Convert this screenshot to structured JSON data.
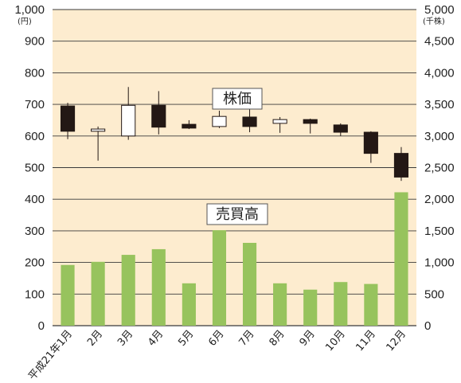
{
  "chart_data": {
    "type": "candlestick+bar",
    "colors": {
      "plot_background": "#fdeccf",
      "bar": "#97c35d",
      "candle_down": "#231815",
      "candle_up": "#ffffff",
      "gridline": "#3a3a3a"
    },
    "grid": true,
    "categories": [
      "平成21年1月",
      "2月",
      "3月",
      "4月",
      "5月",
      "6月",
      "7月",
      "8月",
      "9月",
      "10月",
      "11月",
      "12月"
    ],
    "left_axis": {
      "unit": "(円)",
      "ylim": [
        0,
        1000
      ],
      "ticks": [
        "0",
        "100",
        "200",
        "300",
        "400",
        "500",
        "600",
        "700",
        "800",
        "900",
        "1,000"
      ]
    },
    "right_axis": {
      "unit": "(千株)",
      "ylim": [
        0,
        5000
      ],
      "ticks": [
        "0",
        "500",
        "1,000",
        "1,500",
        "2,000",
        "2,500",
        "3,000",
        "3,500",
        "4,000",
        "4,500",
        "5,000"
      ]
    },
    "series": [
      {
        "name": "株価",
        "kind": "candlestick",
        "axis": "left",
        "ohlc": [
          {
            "open": 695,
            "high": 705,
            "low": 590,
            "close": 615
          },
          {
            "open": 615,
            "high": 630,
            "low": 522,
            "close": 622
          },
          {
            "open": 600,
            "high": 755,
            "low": 588,
            "close": 697
          },
          {
            "open": 697,
            "high": 742,
            "low": 605,
            "close": 628
          },
          {
            "open": 637,
            "high": 650,
            "low": 622,
            "close": 625
          },
          {
            "open": 630,
            "high": 680,
            "low": 625,
            "close": 662
          },
          {
            "open": 660,
            "high": 695,
            "low": 612,
            "close": 630
          },
          {
            "open": 640,
            "high": 660,
            "low": 610,
            "close": 652
          },
          {
            "open": 652,
            "high": 655,
            "low": 608,
            "close": 640
          },
          {
            "open": 635,
            "high": 640,
            "low": 600,
            "close": 612
          },
          {
            "open": 612,
            "high": 615,
            "low": 515,
            "close": 545
          },
          {
            "open": 545,
            "high": 565,
            "low": 458,
            "close": 470
          }
        ]
      },
      {
        "name": "売買高",
        "kind": "bar",
        "axis": "right",
        "values": [
          960,
          1010,
          1120,
          1210,
          670,
          1510,
          1310,
          670,
          570,
          690,
          660,
          2110
        ]
      }
    ]
  }
}
